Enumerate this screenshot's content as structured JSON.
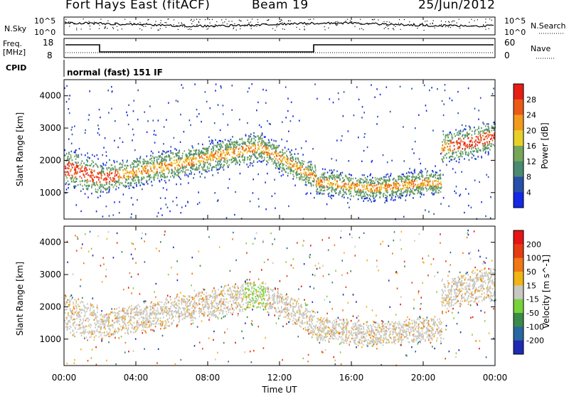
{
  "header": {
    "station": "Fort Hays East (fitACF)",
    "beam": "Beam 19",
    "date": "25/Jun/2012"
  },
  "noise_panel": {
    "left_label": "N.Sky",
    "right_label": "N.Search",
    "left_ticks": [
      "10^5",
      "10^0"
    ],
    "right_ticks": [
      "10^5",
      "10^0"
    ]
  },
  "freq_panel": {
    "left_label_1": "Freq.",
    "left_label_2": "[MHz]",
    "left_ticks": [
      "18",
      "8"
    ],
    "right_label": "Nave",
    "right_ticks": [
      "60",
      "0"
    ]
  },
  "cpid_panel": {
    "label": "CPID",
    "value": "normal (fast) 151 IF"
  },
  "chart_data": [
    {
      "type": "heatmap",
      "name": "power",
      "ylabel": "Slant Range [km]",
      "y_ticks": [
        "4000",
        "3000",
        "2000",
        "1000"
      ],
      "ylim": [
        180,
        4500
      ],
      "colorbar_label": "Power [dB]",
      "colorbar_ticks": [
        "28",
        "24",
        "20",
        "16",
        "12",
        "8",
        "4"
      ],
      "colors": [
        "#1428e6",
        "#2850a8",
        "#4a8a70",
        "#76a65a",
        "#e8d02a",
        "#f29a1e",
        "#ec5a18",
        "#e61e14"
      ]
    },
    {
      "type": "heatmap",
      "name": "velocity",
      "ylabel": "Slant Range [km]",
      "y_ticks": [
        "4000",
        "3000",
        "2000",
        "1000"
      ],
      "ylim": [
        180,
        4500
      ],
      "colorbar_label": "Velocity [m s^-1]",
      "colorbar_ticks": [
        "200",
        "100",
        "50",
        "15",
        "-15",
        "-50",
        "-100",
        "-200"
      ],
      "colors": [
        "#1e2ab4",
        "#2868a0",
        "#3a8a4a",
        "#78d23c",
        "#c8c8c0",
        "#f0b414",
        "#f07814",
        "#e63c14",
        "#e61414"
      ]
    }
  ],
  "x_axis": {
    "label": "Time UT",
    "ticks": [
      "00:00",
      "04:00",
      "08:00",
      "12:00",
      "16:00",
      "20:00",
      "00:00"
    ]
  }
}
